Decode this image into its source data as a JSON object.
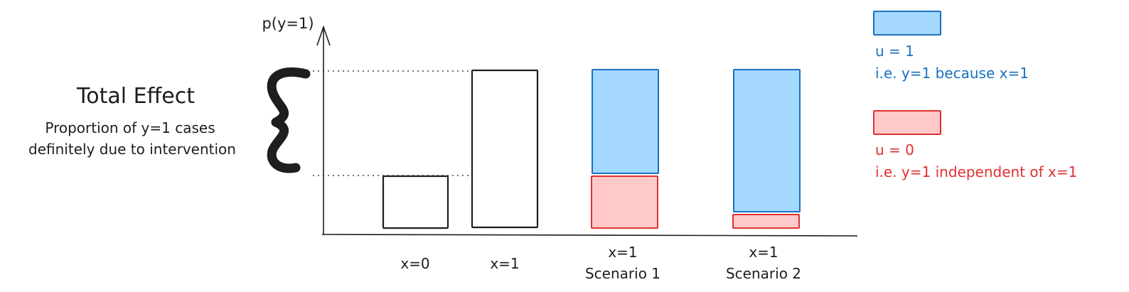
{
  "axis": {
    "y_label": "p(y=1)"
  },
  "annotation": {
    "title": "Total Effect",
    "subtitle_line1": "Proportion of y=1 cases",
    "subtitle_line2": "definitely due to intervention"
  },
  "bars": [
    {
      "label_line1": "x=0",
      "label_line2": ""
    },
    {
      "label_line1": "x=1",
      "label_line2": ""
    },
    {
      "label_line1": "x=1",
      "label_line2": "Scenario 1"
    },
    {
      "label_line1": "x=1",
      "label_line2": "Scenario 2"
    }
  ],
  "legend": {
    "u1": {
      "line1": "u = 1",
      "line2": "i.e. y=1 because x=1",
      "color": "#a5d8ff",
      "stroke": "#1971c2"
    },
    "u0": {
      "line1": "u = 0",
      "line2": "i.e. y=1 independent of x=1",
      "color": "#ffc9c9",
      "stroke": "#e03131"
    }
  }
}
